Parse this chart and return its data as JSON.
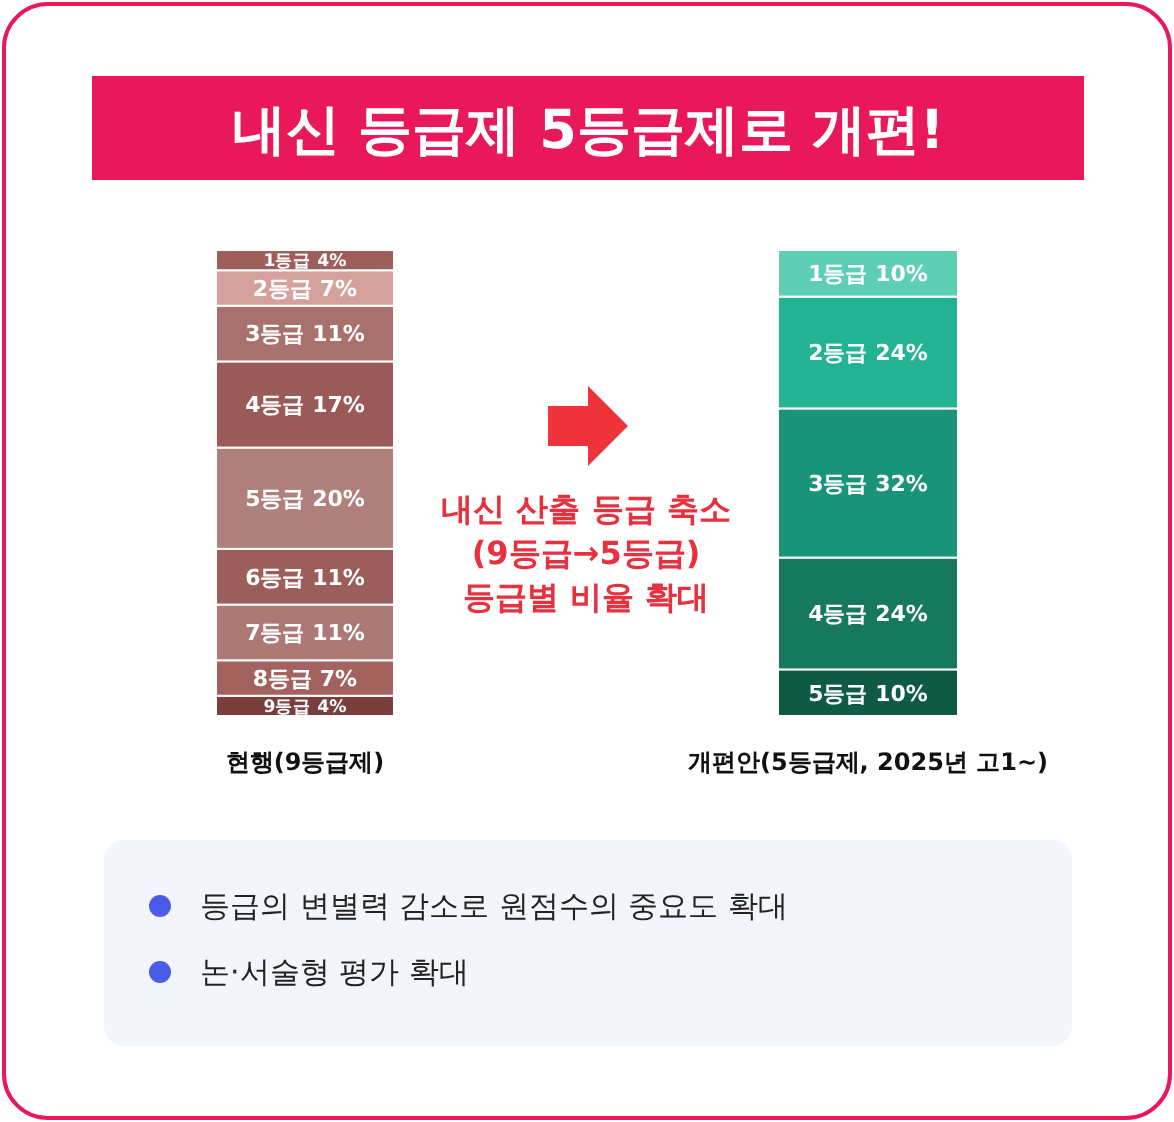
{
  "chart_data": [
    {
      "type": "other",
      "title": "내신 등급제 5등급제로 개편!",
      "annotations": [
        "내신 산출 등급 축소\n(9등급→5등급)\n등급별 비율 확대",
        "등급의 변별력 감소로 원점수의 중요도 확대",
        "논·서술형 평가 확대"
      ]
    },
    {
      "type": "bar",
      "stacked": true,
      "categories": [
        "현행(9등급제)"
      ],
      "tick_labels": "x",
      "series": [
        {
          "color": "#7a3f3d",
          "values": [
            4
          ],
          "value_labels": [
            "9등급 4%"
          ]
        },
        {
          "color": "#a3625e",
          "values": [
            7
          ],
          "value_labels": [
            "8등급 7%"
          ]
        },
        {
          "color": "#ad7975",
          "values": [
            11
          ],
          "value_labels": [
            "7등급 11%"
          ]
        },
        {
          "color": "#9c5e5a",
          "values": [
            11
          ],
          "value_labels": [
            "6등급 11%"
          ]
        },
        {
          "color": "#b0807c",
          "values": [
            20
          ],
          "value_labels": [
            "5등급 20%"
          ]
        },
        {
          "color": "#9a5a57",
          "values": [
            17
          ],
          "value_labels": [
            "4등급 17%"
          ]
        },
        {
          "color": "#a8716d",
          "values": [
            11
          ],
          "value_labels": [
            "3등급 11%"
          ]
        },
        {
          "color": "#d4a19c",
          "values": [
            7
          ],
          "value_labels": [
            "2등급 7%"
          ]
        },
        {
          "color": "#9e5f5b",
          "values": [
            4
          ],
          "value_labels": [
            "1등급 4%"
          ]
        }
      ]
    },
    {
      "type": "bar",
      "stacked": true,
      "categories": [
        "개편안(5등급제, 2025년 고1~)"
      ],
      "tick_labels": "x",
      "series": [
        {
          "color": "#0e5a45",
          "values": [
            10
          ],
          "value_labels": [
            "5등급 10%"
          ]
        },
        {
          "color": "#16795f",
          "values": [
            24
          ],
          "value_labels": [
            "4등급 24%"
          ]
        },
        {
          "color": "#1a9478",
          "values": [
            32
          ],
          "value_labels": [
            "3등급 32%"
          ]
        },
        {
          "color": "#23b394",
          "values": [
            24
          ],
          "value_labels": [
            "2등급 24%"
          ]
        },
        {
          "color": "#5ecfb5",
          "values": [
            10
          ],
          "value_labels": [
            "1등급 10%"
          ]
        }
      ]
    }
  ]
}
